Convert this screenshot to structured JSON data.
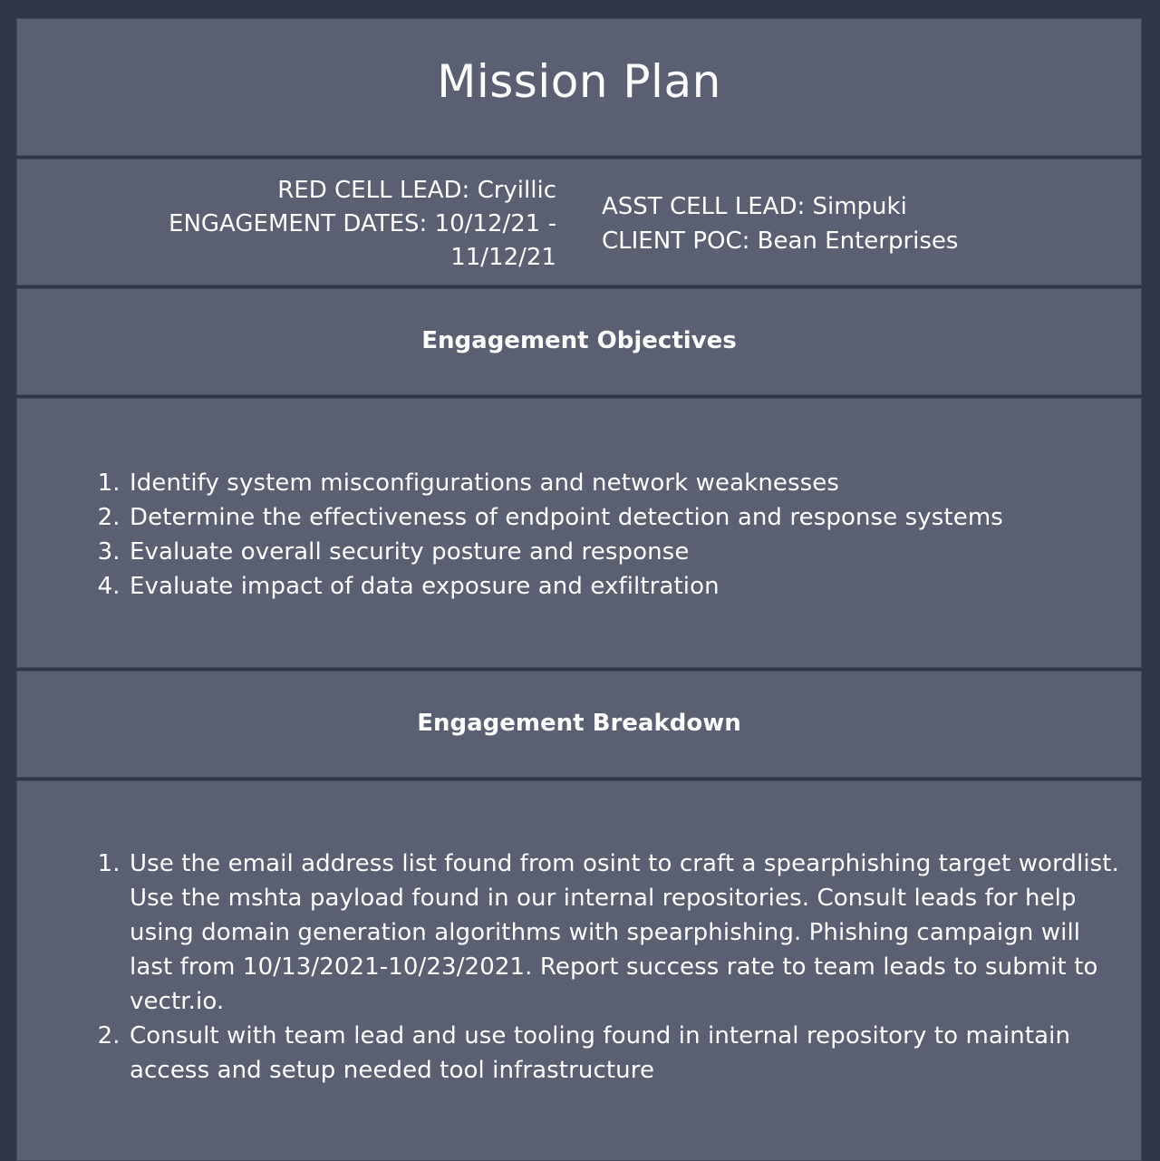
{
  "title": "Mission Plan",
  "meta": {
    "red_cell_lead": "RED CELL LEAD: Cryillic",
    "engagement_dates_line1": "ENGAGEMENT DATES: 10/12/21 -",
    "engagement_dates_line2": "11/12/21",
    "asst_cell_lead": "ASST CELL LEAD: Simpuki",
    "client_poc": "CLIENT POC: Bean Enterprises"
  },
  "objectives": {
    "heading": "Engagement Objectives",
    "items": [
      "Identify system misconfigurations and network weaknesses",
      "Determine the effectiveness of endpoint detection and response systems",
      "Evaluate overall security posture and response",
      "Evaluate impact of data exposure and exfiltration"
    ]
  },
  "breakdown": {
    "heading": "Engagement Breakdown",
    "items": [
      "Use the email address list found from osint to craft a spearphishing target wordlist. Use the mshta payload found in our internal repositories. Consult leads for help using domain generation algorithms with spearphishing. Phishing campaign will last from 10/13/2021-10/23/2021. Report success rate to team leads to submit to vectr.io.",
      "Consult with team lead and use tooling found in internal repository to maintain access and setup needed tool infrastructure"
    ]
  }
}
